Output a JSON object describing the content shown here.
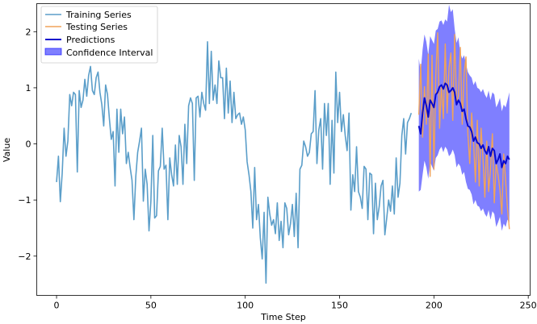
{
  "chart_data": {
    "type": "line",
    "xlabel": "Time Step",
    "ylabel": "Value",
    "xlim": [
      -10.5,
      251
    ],
    "ylim": [
      -2.7,
      2.5
    ],
    "xticks": [
      0,
      50,
      100,
      150,
      200,
      250
    ],
    "yticks": [
      -2,
      -1,
      0,
      1,
      2
    ],
    "grid": false,
    "legend_position": "top-left",
    "series": [
      {
        "name": "Training Series",
        "color": "#5b9ec9",
        "x_start": 0,
        "values": [
          -0.68,
          -0.22,
          -1.03,
          -0.52,
          0.28,
          -0.22,
          0.05,
          0.88,
          0.68,
          0.92,
          0.88,
          -0.5,
          0.95,
          0.65,
          0.78,
          1.15,
          0.85,
          1.22,
          1.38,
          0.95,
          0.88,
          1.18,
          1.28,
          0.92,
          0.7,
          0.32,
          1.05,
          0.88,
          0.45,
          0.08,
          0.22,
          -0.75,
          0.62,
          -0.15,
          0.62,
          0.18,
          0.48,
          -0.35,
          -0.15,
          -0.42,
          -0.65,
          -1.35,
          -0.58,
          -0.15,
          0.05,
          0.28,
          -1.02,
          -0.45,
          -0.72,
          -1.55,
          -1.02,
          0.15,
          -1.32,
          -1.28,
          -0.48,
          -0.4,
          0.28,
          -0.45,
          -0.38,
          -1.35,
          -0.25,
          -0.55,
          -0.75,
          -0.02,
          -0.72,
          0.15,
          -0.05,
          -0.72,
          0.35,
          -0.35,
          0.68,
          0.82,
          0.72,
          -0.65,
          0.82,
          0.85,
          0.48,
          0.92,
          0.72,
          0.6,
          1.82,
          0.72,
          1.65,
          0.78,
          1.05,
          0.72,
          1.48,
          1.18,
          1.18,
          0.45,
          1.35,
          0.55,
          1.12,
          0.38,
          0.92,
          0.45,
          0.52,
          0.55,
          0.35,
          0.48,
          0.25,
          -0.32,
          -0.55,
          -0.85,
          -1.5,
          -0.42,
          -1.35,
          -1.08,
          -1.68,
          -2.05,
          -1.22,
          -2.48,
          -0.95,
          -1.25,
          -1.45,
          -1.35,
          -1.6,
          -1.05,
          -1.72,
          -1.38,
          -1.85,
          -1.05,
          -1.15,
          -1.62,
          -1.42,
          -1.08,
          -1.65,
          -0.88,
          -1.85,
          -0.45,
          -0.38,
          0.05,
          -0.05,
          -0.22,
          -0.15,
          0.18,
          0.22,
          0.95,
          -0.35,
          0.25,
          0.45,
          -0.45,
          0.72,
          0.15,
          0.72,
          -0.72,
          0.42,
          -0.52,
          1.28,
          0.38,
          0.92,
          0.22,
          0.52,
          0.15,
          -0.12,
          0.55,
          -1.18,
          -0.55,
          -0.85,
          -0.05,
          -0.85,
          -0.95,
          -1.15,
          -0.4,
          -0.45,
          -1.35,
          -0.52,
          -0.55,
          -1.6,
          -0.7,
          -1.35,
          -1.12,
          -0.75,
          -0.65,
          -1.62,
          -1.32,
          -1.0,
          -1.2,
          -0.75,
          -1.25,
          -0.25,
          -0.95,
          -0.7,
          0.15,
          0.45,
          -0.18,
          0.38,
          0.45,
          0.55
        ]
      },
      {
        "name": "Testing Series",
        "color": "#f0a35a",
        "x_start": 192,
        "values": [
          0.52,
          1.42,
          0.12,
          1.02,
          0.35,
          1.6,
          -0.58,
          1.58,
          -0.45,
          1.22,
          1.98,
          0.28,
          1.05,
          0.45,
          1.78,
          0.55,
          1.35,
          1.62,
          0.42,
          1.95,
          0.72,
          0.85,
          1.72,
          0.35,
          1.25,
          1.55,
          0.18,
          -0.35,
          0.55,
          0.05,
          -0.68,
          0.42,
          -0.75,
          0.28,
          -0.25,
          -0.95,
          0.05,
          -0.85,
          -0.45,
          0.18,
          -1.05,
          -0.35,
          -0.55,
          -0.82,
          -1.25,
          -0.18,
          -0.65,
          -1.15,
          -1.52
        ]
      },
      {
        "name": "Predictions",
        "color": "#0a0acc",
        "x_start": 192,
        "values": [
          0.32,
          0.18,
          0.55,
          0.82,
          0.68,
          0.48,
          0.78,
          0.72,
          0.65,
          0.88,
          0.92,
          1.02,
          1.05,
          0.98,
          1.08,
          1.05,
          0.92,
          0.95,
          1.0,
          0.92,
          0.7,
          0.78,
          0.72,
          0.58,
          0.62,
          0.45,
          0.32,
          0.3,
          0.22,
          0.05,
          0.12,
          0.02,
          0.0,
          -0.08,
          -0.02,
          -0.12,
          -0.18,
          -0.05,
          -0.22,
          -0.08,
          -0.12,
          -0.35,
          -0.28,
          -0.18,
          -0.42,
          -0.3,
          -0.35,
          -0.22,
          -0.28
        ]
      }
    ],
    "confidence_interval": {
      "name": "Confidence Interval",
      "color": "#0000ff",
      "opacity": 0.5,
      "x_start": 192,
      "upper": [
        1.52,
        1.28,
        1.68,
        1.95,
        1.82,
        1.58,
        1.92,
        1.85,
        1.78,
        2.02,
        2.05,
        2.18,
        2.2,
        2.12,
        2.22,
        2.18,
        2.48,
        2.35,
        2.4,
        2.05,
        1.8,
        1.9,
        1.62,
        1.52,
        1.58,
        1.42,
        1.28,
        1.22,
        1.18,
        1.05,
        1.12,
        1.0,
        0.98,
        0.92,
        0.98,
        0.88,
        0.82,
        0.95,
        0.78,
        0.92,
        0.88,
        0.65,
        0.72,
        0.82,
        0.58,
        0.7,
        0.65,
        0.78,
        0.92
      ],
      "lower": [
        -0.85,
        -0.82,
        -0.55,
        -0.3,
        -0.42,
        -0.62,
        -0.32,
        -0.4,
        -0.48,
        -0.25,
        -0.2,
        -0.1,
        -0.05,
        -0.15,
        -0.05,
        -0.1,
        -0.22,
        -0.18,
        -0.1,
        -0.2,
        -0.42,
        -0.35,
        -0.4,
        -0.55,
        -0.5,
        -0.68,
        -0.8,
        -0.82,
        -0.9,
        -1.08,
        -1.0,
        -1.1,
        -1.12,
        -1.2,
        -1.15,
        -1.25,
        -1.3,
        -1.18,
        -1.35,
        -1.2,
        -1.25,
        -1.48,
        -1.4,
        -1.3,
        -1.55,
        -1.42,
        -1.48,
        -1.35,
        -1.4
      ]
    }
  }
}
